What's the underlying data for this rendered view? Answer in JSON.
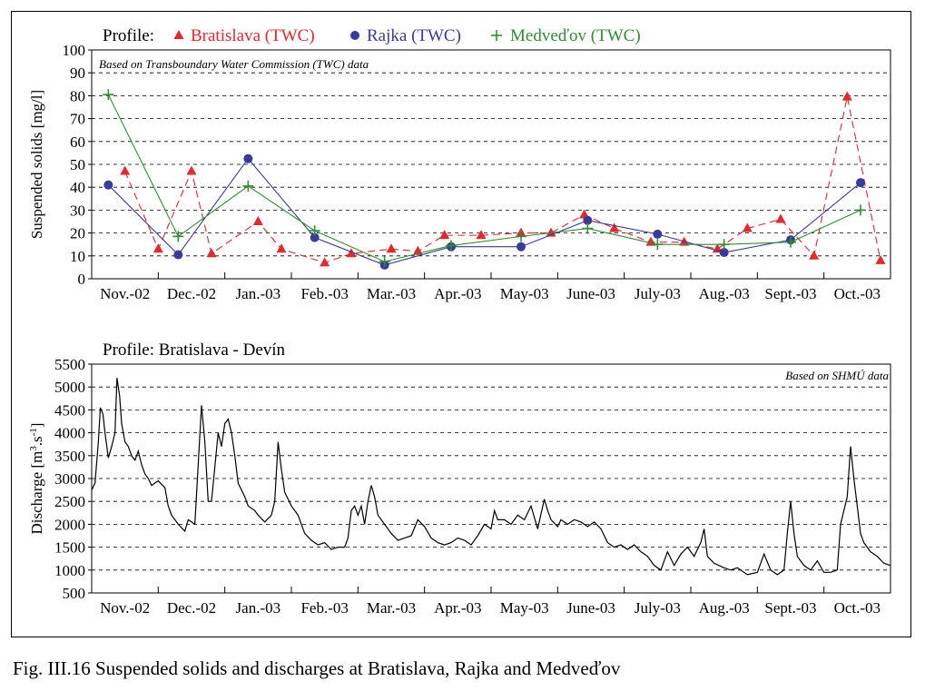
{
  "caption": "Fig. III.16  Suspended solids and discharges at Bratislava, Rajka and Medveďov",
  "colors": {
    "bratislava": "#e8262b",
    "rajka": "#3a3a9c",
    "medvedov": "#2f8f2f",
    "line": "#000000"
  },
  "chart_data": [
    {
      "type": "line",
      "legend_prefix": "Profile:",
      "annotation": "Based on Transboundary Water Commission (TWC) data",
      "ylabel": "Suspended solids [mg/l]",
      "ylim": [
        0,
        100
      ],
      "yticks": [
        0,
        10,
        20,
        30,
        40,
        50,
        60,
        70,
        80,
        90,
        100
      ],
      "grid": "dashed horizontal",
      "legend_position": "top",
      "categories": [
        "Nov.-02",
        "Dec.-02",
        "Jan.-03",
        "Feb.-03",
        "Mar.-03",
        "Apr.-03",
        "May-03",
        "June-03",
        "July-03",
        "Aug.-03",
        "Sept.-03",
        "Oct.-03"
      ],
      "series": [
        {
          "name": "Bratislava (TWC)",
          "marker": "triangle",
          "line": "dashed",
          "points": [
            [
              0.5,
              47
            ],
            [
              1.0,
              13
            ],
            [
              1.5,
              47
            ],
            [
              1.8,
              11
            ],
            [
              2.5,
              25
            ],
            [
              2.85,
              13
            ],
            [
              3.5,
              7
            ],
            [
              3.9,
              11
            ],
            [
              4.5,
              13
            ],
            [
              4.9,
              12
            ],
            [
              5.3,
              19
            ],
            [
              5.85,
              19
            ],
            [
              6.45,
              20
            ],
            [
              6.9,
              20
            ],
            [
              7.4,
              28
            ],
            [
              7.85,
              22
            ],
            [
              8.4,
              16
            ],
            [
              8.9,
              16
            ],
            [
              9.4,
              13
            ],
            [
              9.85,
              22
            ],
            [
              10.35,
              26
            ],
            [
              10.85,
              10
            ],
            [
              11.35,
              79.5
            ],
            [
              11.85,
              8
            ]
          ]
        },
        {
          "name": "Rajka (TWC)",
          "marker": "circle",
          "line": "solid",
          "points": [
            [
              0.25,
              41
            ],
            [
              1.3,
              10.5
            ],
            [
              2.35,
              52.5
            ],
            [
              3.35,
              18
            ],
            [
              4.4,
              6
            ],
            [
              5.4,
              14
            ],
            [
              6.45,
              14
            ],
            [
              7.45,
              25.5
            ],
            [
              8.5,
              19.5
            ],
            [
              9.5,
              11.5
            ],
            [
              10.5,
              17
            ],
            [
              11.55,
              42
            ]
          ]
        },
        {
          "name": "Medveďov (TWC)",
          "marker": "plus",
          "line": "solid",
          "points": [
            [
              0.25,
              80.5
            ],
            [
              1.3,
              18.5
            ],
            [
              2.35,
              40.5
            ],
            [
              3.35,
              21
            ],
            [
              4.4,
              7.5
            ],
            [
              5.4,
              14.5
            ],
            [
              6.45,
              18.5
            ],
            [
              7.45,
              22
            ],
            [
              8.5,
              15
            ],
            [
              9.5,
              15
            ],
            [
              10.5,
              16
            ],
            [
              11.55,
              30
            ]
          ]
        }
      ]
    },
    {
      "type": "line",
      "title": "Profile: Bratislava - Devín",
      "annotation": "Based on SHMÚ data",
      "ylabel_main": "Discharge [m",
      "ylabel_sup1": "3",
      "ylabel_mid": ".s",
      "ylabel_sup2": "-1",
      "ylabel_end": "]",
      "ylim": [
        500,
        5500
      ],
      "yticks": [
        500,
        1000,
        1500,
        2000,
        2500,
        3000,
        3500,
        4000,
        4500,
        5000,
        5500
      ],
      "grid": "dashed horizontal",
      "categories": [
        "Nov.-02",
        "Dec.-02",
        "Jan.-03",
        "Feb.-03",
        "Mar.-03",
        "Apr.-03",
        "May-03",
        "June-03",
        "July-03",
        "Aug.-03",
        "Sept.-03",
        "Oct.-03"
      ],
      "series": [
        {
          "name": "Discharge",
          "points": [
            [
              0.0,
              2750
            ],
            [
              0.05,
              2900
            ],
            [
              0.1,
              3800
            ],
            [
              0.13,
              4550
            ],
            [
              0.17,
              4400
            ],
            [
              0.2,
              4000
            ],
            [
              0.25,
              3450
            ],
            [
              0.3,
              3700
            ],
            [
              0.35,
              4000
            ],
            [
              0.38,
              5200
            ],
            [
              0.42,
              4800
            ],
            [
              0.45,
              4200
            ],
            [
              0.5,
              3800
            ],
            [
              0.55,
              3700
            ],
            [
              0.6,
              3500
            ],
            [
              0.65,
              3400
            ],
            [
              0.7,
              3600
            ],
            [
              0.75,
              3300
            ],
            [
              0.8,
              3100
            ],
            [
              0.85,
              3000
            ],
            [
              0.9,
              2850
            ],
            [
              0.95,
              2900
            ],
            [
              1.0,
              2950
            ],
            [
              1.1,
              2800
            ],
            [
              1.15,
              2400
            ],
            [
              1.2,
              2200
            ],
            [
              1.3,
              2000
            ],
            [
              1.4,
              1850
            ],
            [
              1.45,
              2100
            ],
            [
              1.55,
              2000
            ],
            [
              1.6,
              3300
            ],
            [
              1.65,
              4600
            ],
            [
              1.7,
              3800
            ],
            [
              1.75,
              2500
            ],
            [
              1.8,
              2500
            ],
            [
              1.9,
              4000
            ],
            [
              1.95,
              3700
            ],
            [
              2.0,
              4200
            ],
            [
              2.05,
              4300
            ],
            [
              2.1,
              4000
            ],
            [
              2.15,
              3500
            ],
            [
              2.2,
              2900
            ],
            [
              2.3,
              2600
            ],
            [
              2.35,
              2400
            ],
            [
              2.45,
              2300
            ],
            [
              2.5,
              2200
            ],
            [
              2.6,
              2050
            ],
            [
              2.7,
              2200
            ],
            [
              2.75,
              2500
            ],
            [
              2.8,
              3800
            ],
            [
              2.85,
              3200
            ],
            [
              2.9,
              2700
            ],
            [
              3.0,
              2400
            ],
            [
              3.1,
              2200
            ],
            [
              3.15,
              2000
            ],
            [
              3.2,
              1800
            ],
            [
              3.3,
              1650
            ],
            [
              3.4,
              1550
            ],
            [
              3.5,
              1600
            ],
            [
              3.6,
              1450
            ],
            [
              3.7,
              1500
            ],
            [
              3.8,
              1500
            ],
            [
              3.85,
              1700
            ],
            [
              3.9,
              2300
            ],
            [
              3.95,
              2400
            ],
            [
              4.0,
              2200
            ],
            [
              4.05,
              2400
            ],
            [
              4.1,
              2000
            ],
            [
              4.15,
              2500
            ],
            [
              4.2,
              2850
            ],
            [
              4.25,
              2600
            ],
            [
              4.3,
              2200
            ],
            [
              4.4,
              2000
            ],
            [
              4.5,
              1800
            ],
            [
              4.6,
              1650
            ],
            [
              4.7,
              1700
            ],
            [
              4.8,
              1750
            ],
            [
              4.9,
              2100
            ],
            [
              5.0,
              1950
            ],
            [
              5.1,
              1700
            ],
            [
              5.2,
              1600
            ],
            [
              5.3,
              1550
            ],
            [
              5.4,
              1600
            ],
            [
              5.5,
              1700
            ],
            [
              5.6,
              1650
            ],
            [
              5.7,
              1550
            ],
            [
              5.8,
              1750
            ],
            [
              5.9,
              2000
            ],
            [
              6.0,
              1900
            ],
            [
              6.05,
              2300
            ],
            [
              6.1,
              2100
            ],
            [
              6.2,
              2100
            ],
            [
              6.3,
              2000
            ],
            [
              6.4,
              2200
            ],
            [
              6.5,
              2100
            ],
            [
              6.6,
              2400
            ],
            [
              6.7,
              1900
            ],
            [
              6.8,
              2550
            ],
            [
              6.85,
              2300
            ],
            [
              6.9,
              2100
            ],
            [
              7.0,
              1950
            ],
            [
              7.05,
              2100
            ],
            [
              7.15,
              2000
            ],
            [
              7.25,
              2100
            ],
            [
              7.35,
              2050
            ],
            [
              7.45,
              1950
            ],
            [
              7.55,
              2050
            ],
            [
              7.65,
              1900
            ],
            [
              7.75,
              1600
            ],
            [
              7.85,
              1500
            ],
            [
              7.95,
              1550
            ],
            [
              8.05,
              1450
            ],
            [
              8.15,
              1550
            ],
            [
              8.25,
              1400
            ],
            [
              8.35,
              1300
            ],
            [
              8.45,
              1100
            ],
            [
              8.55,
              1000
            ],
            [
              8.65,
              1400
            ],
            [
              8.75,
              1100
            ],
            [
              8.85,
              1350
            ],
            [
              8.95,
              1500
            ],
            [
              9.05,
              1300
            ],
            [
              9.15,
              1600
            ],
            [
              9.2,
              1900
            ],
            [
              9.25,
              1300
            ],
            [
              9.35,
              1150
            ],
            [
              9.5,
              1050
            ],
            [
              9.6,
              1000
            ],
            [
              9.7,
              1050
            ],
            [
              9.85,
              900
            ],
            [
              10.0,
              950
            ],
            [
              10.1,
              1350
            ],
            [
              10.2,
              1000
            ],
            [
              10.3,
              900
            ],
            [
              10.4,
              1000
            ],
            [
              10.45,
              1800
            ],
            [
              10.5,
              2500
            ],
            [
              10.55,
              1800
            ],
            [
              10.6,
              1300
            ],
            [
              10.7,
              1100
            ],
            [
              10.8,
              1000
            ],
            [
              10.9,
              1200
            ],
            [
              11.0,
              950
            ],
            [
              11.1,
              950
            ],
            [
              11.2,
              1000
            ],
            [
              11.25,
              2000
            ],
            [
              11.3,
              2300
            ],
            [
              11.35,
              2600
            ],
            [
              11.4,
              3700
            ],
            [
              11.45,
              3000
            ],
            [
              11.5,
              2400
            ],
            [
              11.55,
              1800
            ],
            [
              11.6,
              1600
            ],
            [
              11.7,
              1400
            ],
            [
              11.8,
              1300
            ],
            [
              11.9,
              1150
            ],
            [
              12.0,
              1100
            ]
          ]
        }
      ]
    }
  ]
}
